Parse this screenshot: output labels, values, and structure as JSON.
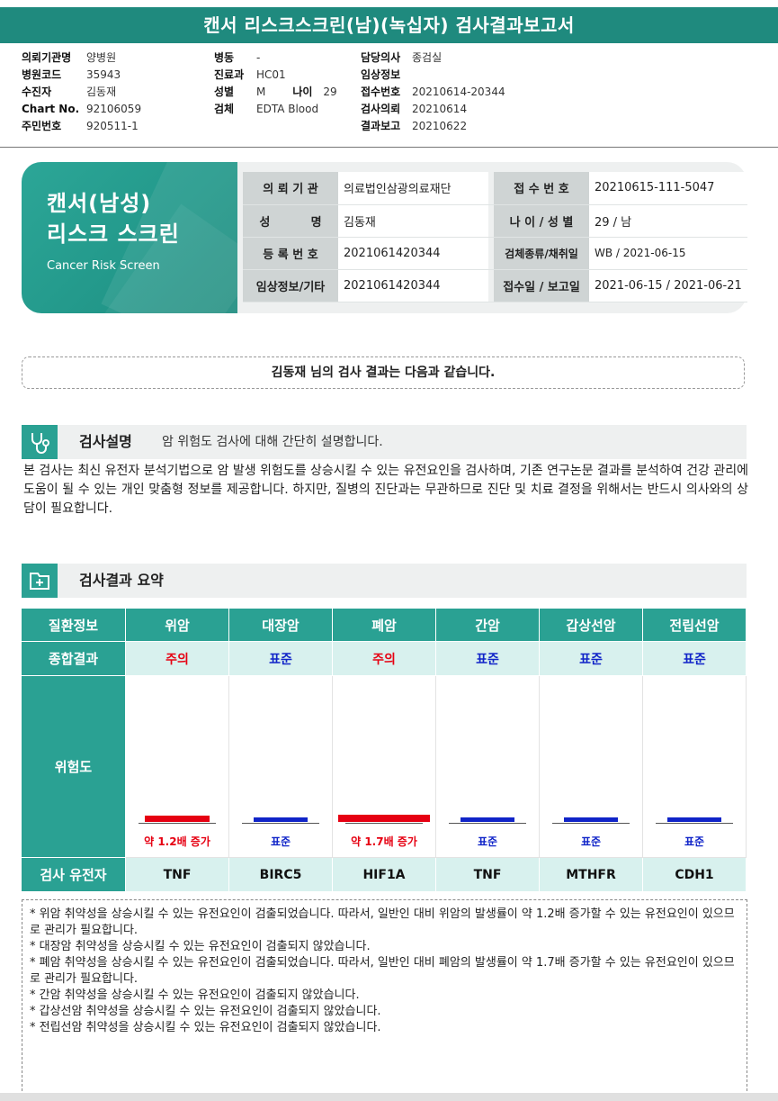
{
  "report_title": "캔서 리스크스크린(남)(녹십자) 검사결과보고서",
  "patient_info": {
    "col1": [
      {
        "label": "의뢰기관명",
        "value": "양병원"
      },
      {
        "label": "병원코드",
        "value": "35943"
      },
      {
        "label": "수진자",
        "value": "김동재"
      },
      {
        "label": "Chart No.",
        "value": "92106059"
      },
      {
        "label": "주민번호",
        "value": "920511-1"
      }
    ],
    "col2": [
      {
        "label": "병동",
        "value": "-"
      },
      {
        "label": "진료과",
        "value": "HC01"
      },
      {
        "label": "성별",
        "value": "M"
      },
      {
        "label": "검체",
        "value": "EDTA Blood"
      }
    ],
    "age_label": "나이",
    "age_value": "29",
    "col3": [
      {
        "label": "담당의사",
        "value": "종검실"
      },
      {
        "label": "임상정보",
        "value": ""
      },
      {
        "label": "접수번호",
        "value": "20210614-20344"
      },
      {
        "label": "검사의뢰",
        "value": "20210614"
      },
      {
        "label": "결과보고",
        "value": "20210622"
      }
    ]
  },
  "hero": {
    "line1": "캔서(남성)",
    "line2": "리스크 스크린",
    "english": "Cancer Risk Screen"
  },
  "header_table": [
    {
      "k1": "의 뢰 기 관",
      "v1": "의료법인삼광의료재단",
      "k2": "접 수 번 호",
      "v2": "20210615-111-5047"
    },
    {
      "k1": "성          명",
      "v1": "김동재",
      "k2": "나 이 / 성 별",
      "v2": "29 / 남"
    },
    {
      "k1": "등 록 번 호",
      "v1": "2021061420344",
      "k2": "검체종류/채취일",
      "v2": "WB / 2021-06-15"
    },
    {
      "k1": "임상정보/기타",
      "v1": "2021061420344",
      "k2": "접수일 / 보고일",
      "v2": "2021-06-15 / 2021-06-21"
    }
  ],
  "notice": "김동재 님의 검사 결과는 다음과 같습니다.",
  "section_explain": {
    "title": "검사설명",
    "subtitle": "암 위험도 검사에 대해 간단히 설명합니다.",
    "icon": "stethoscope-icon",
    "body": "본 검사는 최신 유전자 분석기법으로 암 발생 위험도를 상승시킬 수 있는 유전요인을 검사하며, 기존 연구논문 결과를 분석하여 건강 관리에 도움이 될 수 있는 개인 맞춤형 정보를 제공합니다. 하지만, 질병의 진단과는 무관하므로 진단 및 치료 결정을 위해서는 반드시 의사와의 상담이 필요합니다."
  },
  "section_summary": {
    "title": "검사결과 요약",
    "icon": "medical-folder-icon"
  },
  "result_table": {
    "row_labels": {
      "disease": "질환정보",
      "result": "종합결과",
      "risk": "위험도",
      "gene": "검사 유전자"
    },
    "columns": [
      {
        "disease": "위암",
        "result": "주의",
        "risk_label": "약 1.2배 증가",
        "gene": "TNF",
        "status": "caution",
        "relative_risk": 1.2
      },
      {
        "disease": "대장암",
        "result": "표준",
        "risk_label": "표준",
        "gene": "BIRC5",
        "status": "normal",
        "relative_risk": 1.0
      },
      {
        "disease": "폐암",
        "result": "주의",
        "risk_label": "약 1.7배 증가",
        "gene": "HIF1A",
        "status": "caution",
        "relative_risk": 1.7
      },
      {
        "disease": "간암",
        "result": "표준",
        "risk_label": "표준",
        "gene": "TNF",
        "status": "normal",
        "relative_risk": 1.0
      },
      {
        "disease": "갑상선암",
        "result": "표준",
        "risk_label": "표준",
        "gene": "MTHFR",
        "status": "normal",
        "relative_risk": 1.0
      },
      {
        "disease": "전립선암",
        "result": "표준",
        "risk_label": "표준",
        "gene": "CDH1",
        "status": "normal",
        "relative_risk": 1.0
      }
    ]
  },
  "notes": [
    "* 위암 취약성을 상승시킬 수 있는 유전요인이 검출되었습니다. 따라서, 일반인 대비 위암의 발생률이 약 1.2배 증가할 수 있는 유전요인이 있으므로 관리가 필요합니다.",
    "* 대장암 취약성을 상승시킬 수 있는 유전요인이 검출되지 않았습니다.",
    "* 폐암 취약성을 상승시킬 수 있는 유전요인이 검출되었습니다. 따라서, 일반인 대비 폐암의 발생률이 약 1.7배 증가할 수 있는 유전요인이 있으므로 관리가 필요합니다.",
    "* 간암 취약성을 상승시킬 수 있는 유전요인이 검출되지 않았습니다.",
    "* 갑상선암 취약성을 상승시킬 수 있는 유전요인이 검출되지 않았습니다.",
    "* 전립선암 취약성을 상승시킬 수 있는 유전요인이 검출되지 않았습니다."
  ],
  "colors": {
    "primary": "#2aa193",
    "light": "#d8f1ee",
    "caution": "#e60012",
    "normal": "#1024c8"
  }
}
